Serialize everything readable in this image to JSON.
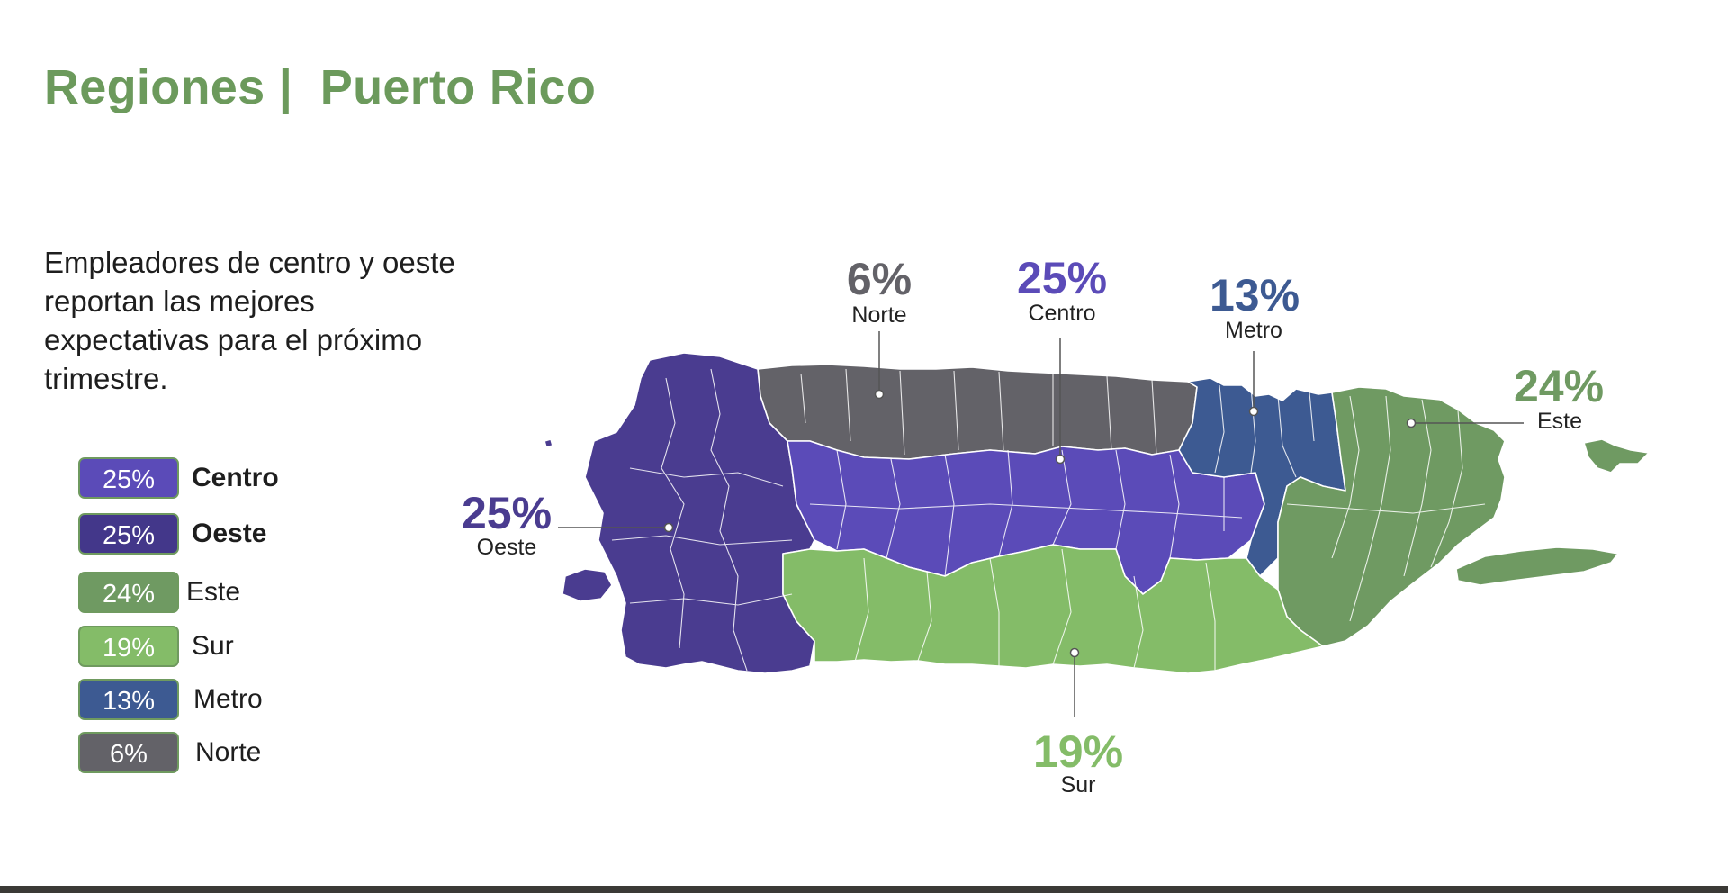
{
  "header": {
    "title": "Regiones |  Puerto Rico"
  },
  "summary": {
    "text": "Empleadores de centro y oeste reportan las mejores expectativas para el próximo trimestre."
  },
  "colors": {
    "centro": "#5b4bb8",
    "oeste": "#4a3c90",
    "este": "#6f9a62",
    "sur": "#84bc68",
    "metro": "#3d5a92",
    "norte": "#636268",
    "title_green": "#6c9a5c"
  },
  "legend": [
    {
      "pct": "25%",
      "label": "Centro",
      "color": "#5b4bb8",
      "bold": true
    },
    {
      "pct": "25%",
      "label": "Oeste",
      "color": "#43378a",
      "bold": true
    },
    {
      "pct": "24%",
      "label": "Este",
      "color": "#6f9a62",
      "bold": false
    },
    {
      "pct": "19%",
      "label": "Sur",
      "color": "#84bc68",
      "bold": false
    },
    {
      "pct": "13%",
      "label": "Metro",
      "color": "#3d5a92",
      "bold": false
    },
    {
      "pct": "6%",
      "label": "Norte",
      "color": "#636268",
      "bold": false
    }
  ],
  "callouts": {
    "norte": {
      "pct": "6%",
      "name": "Norte"
    },
    "centro": {
      "pct": "25%",
      "name": "Centro"
    },
    "metro": {
      "pct": "13%",
      "name": "Metro"
    },
    "este": {
      "pct": "24%",
      "name": "Este"
    },
    "oeste": {
      "pct": "25%",
      "name": "Oeste"
    },
    "sur": {
      "pct": "19%",
      "name": "Sur"
    }
  }
}
